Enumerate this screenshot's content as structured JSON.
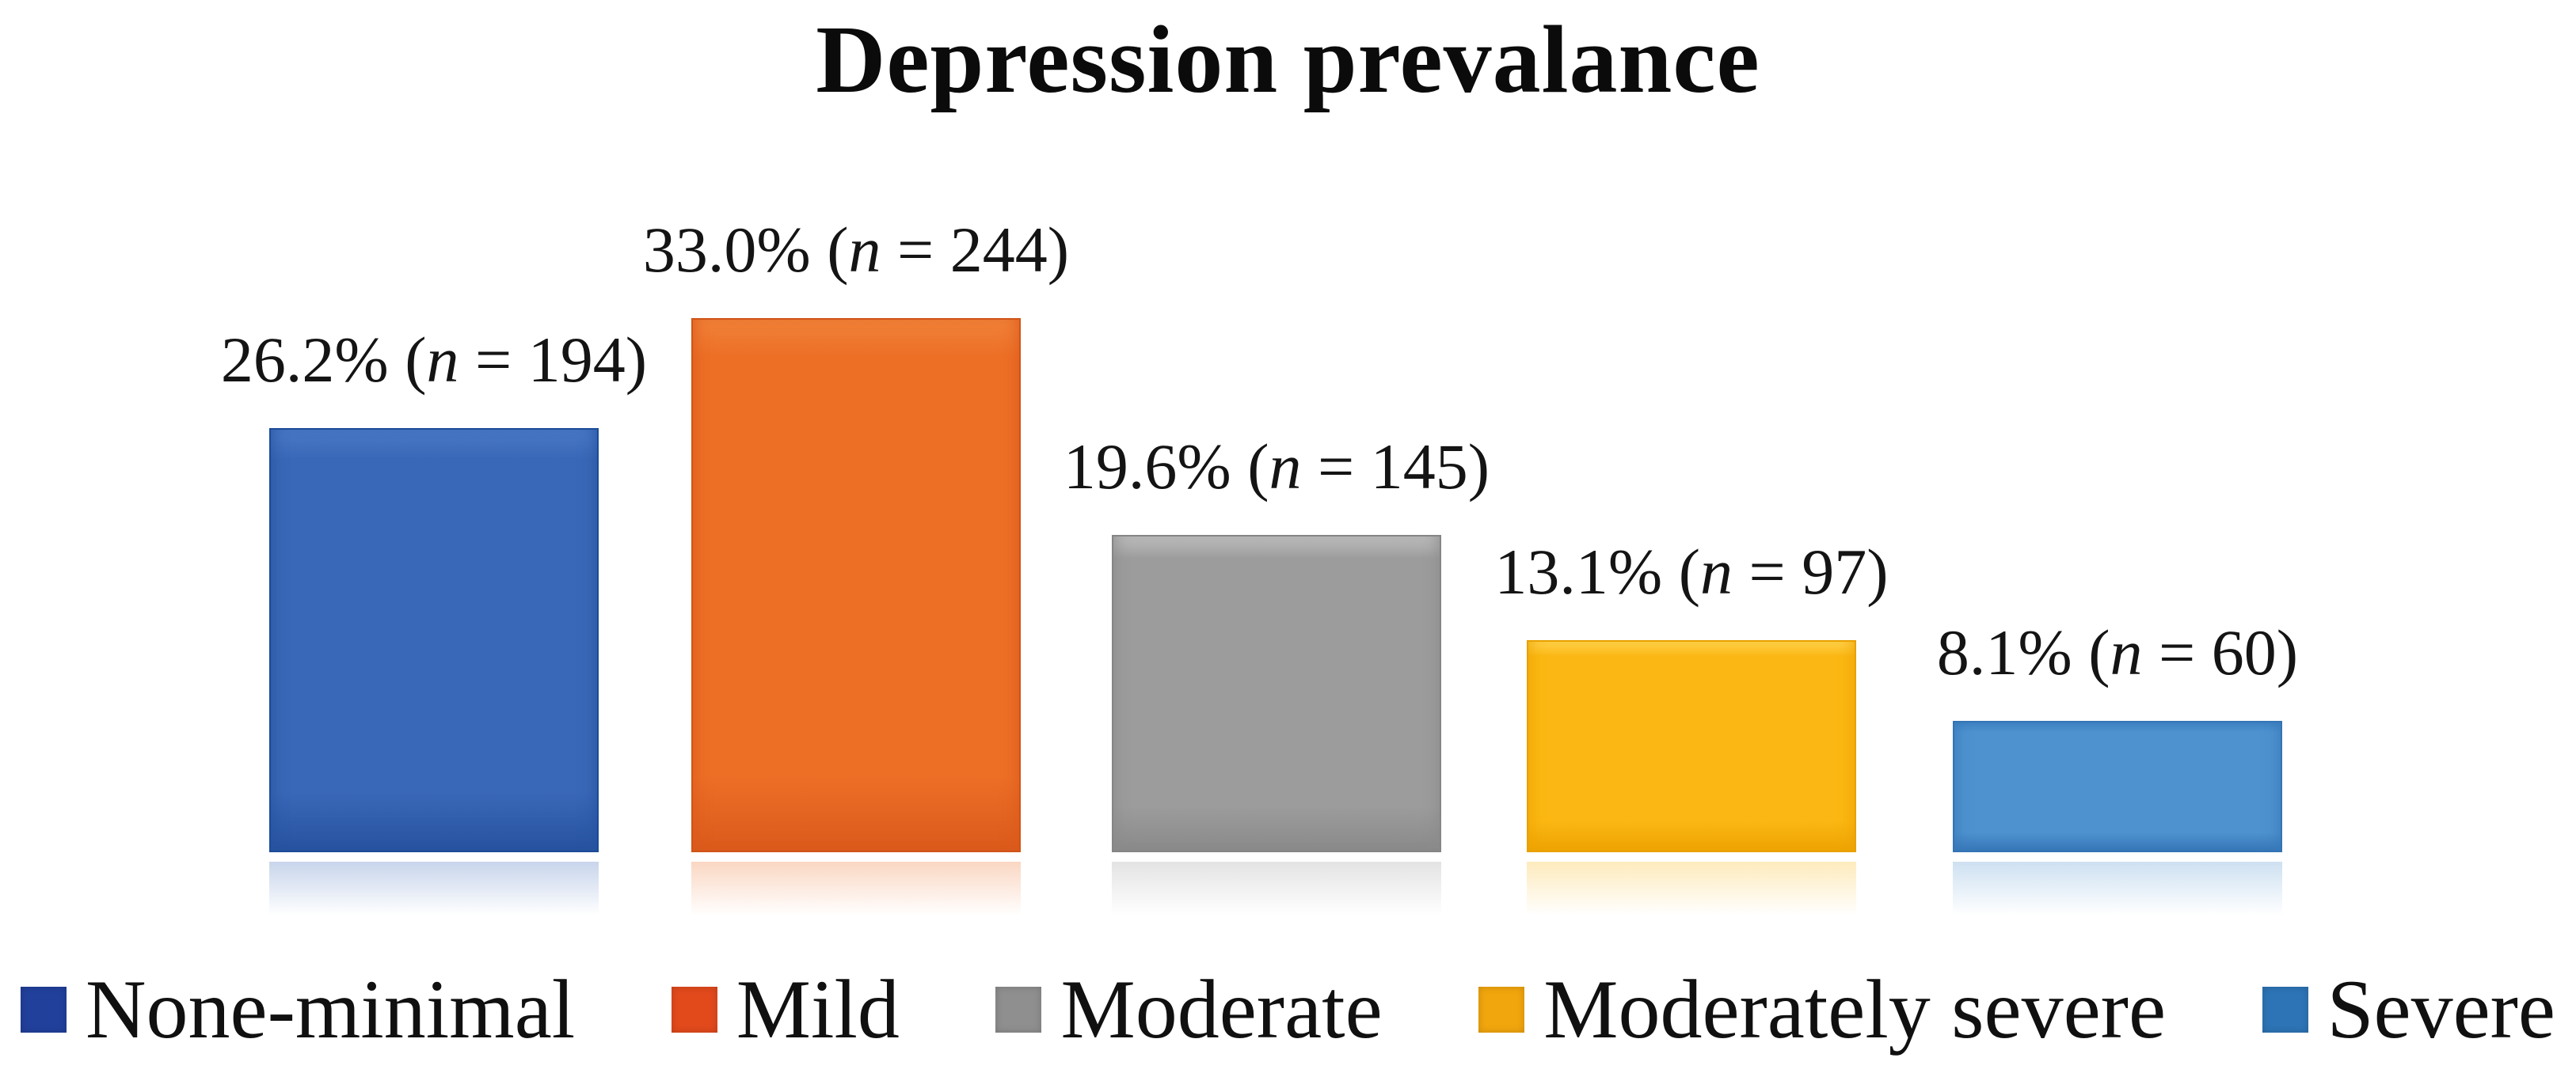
{
  "title": "Depression prevalance",
  "n_symbol": "n",
  "chart_data": {
    "type": "bar",
    "title": "Depression prevalance",
    "xlabel": "",
    "ylabel": "",
    "axes_visible": false,
    "grid": false,
    "ylim": [
      0,
      35
    ],
    "legend_position": "bottom",
    "categories": [
      "None-minimal",
      "Mild",
      "Moderate",
      "Moderately severe",
      "Severe"
    ],
    "values": [
      26.2,
      33.0,
      19.6,
      13.1,
      8.1
    ],
    "counts": [
      194,
      244,
      145,
      97,
      60
    ],
    "data_labels": [
      "26.2% (n = 194)",
      "33.0% (n = 244)",
      "19.6% (n = 145)",
      "13.1% (n = 97)",
      "8.1% (n = 60)"
    ],
    "label_parts": [
      {
        "percent": "26.2%",
        "open": "(",
        "eq": " = ",
        "n": "194",
        "close": ")"
      },
      {
        "percent": "33.0%",
        "open": "(",
        "eq": " = ",
        "n": "244",
        "close": ")"
      },
      {
        "percent": "19.6%",
        "open": "(",
        "eq": " = ",
        "n": "145",
        "close": ")"
      },
      {
        "percent": "13.1%",
        "open": "(",
        "eq": " = ",
        "n": "97",
        "close": ")"
      },
      {
        "percent": "8.1%",
        "open": "(",
        "eq": " = ",
        "n": "60",
        "close": ")"
      }
    ],
    "bar_colors": [
      {
        "top": "#4a79c6",
        "mid": "#3a68b8",
        "bottom": "#27539f",
        "border": "#1c4b97"
      },
      {
        "top": "#f08138",
        "mid": "#ed6f26",
        "bottom": "#da5a1c",
        "border": "#cf5418"
      },
      {
        "top": "#bdbdbd",
        "mid": "#9c9c9c",
        "bottom": "#8a8a8a",
        "border": "#858585"
      },
      {
        "top": "#ffd34d",
        "mid": "#fbb713",
        "bottom": "#eda303",
        "border": "#e8a000"
      },
      {
        "top": "#3f83c3",
        "mid": "#4e92cf",
        "bottom": "#3878b8",
        "border": "#3474b4"
      }
    ],
    "legend": {
      "entries": [
        {
          "label": "None-minimal",
          "swatch_color": "#21409c"
        },
        {
          "label": "Mild",
          "swatch_color": "#e24a1c"
        },
        {
          "label": "Moderate",
          "swatch_color": "#8f8f8f"
        },
        {
          "label": "Moderately severe",
          "swatch_color": "#f2a60d"
        },
        {
          "label": "Severe",
          "swatch_color": "#2d74b6"
        }
      ]
    }
  }
}
